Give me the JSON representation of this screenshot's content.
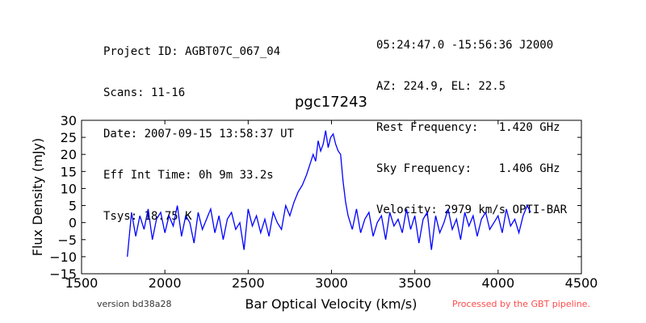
{
  "header": {
    "left": [
      "Project ID: AGBT07C_067_04",
      "Scans: 11-16",
      "Date: 2007-09-15 13:58:37 UT",
      "Eff Int Time: 0h 9m 33.2s",
      "Tsys: 18.75 K"
    ],
    "right": [
      "05:24:47.0 -15:56:36 J2000",
      "AZ: 224.9, EL: 22.5",
      "Rest Frequency:   1.420 GHz",
      "Sky Frequency:    1.406 GHz",
      "Velocity: 2979 km/s OPTI-BAR"
    ]
  },
  "footer": {
    "version": "version bd38a28",
    "pipeline": "Processed by the GBT pipeline."
  },
  "colors": {
    "line": "#0000ff",
    "pipeline_text": "#ff4a4a"
  },
  "chart_data": {
    "type": "line",
    "title": "pgc17243",
    "xlabel": "Bar Optical Velocity (km/s)",
    "ylabel": "Flux Density (mJy)",
    "xlim": [
      1500,
      4500
    ],
    "ylim": [
      -15,
      30
    ],
    "xticks": [
      1500,
      2000,
      2500,
      3000,
      3500,
      4000,
      4500
    ],
    "yticks": [
      -15,
      -10,
      -5,
      0,
      5,
      10,
      15,
      20,
      25,
      30
    ],
    "grid": false,
    "series": [
      {
        "x": [
          1775,
          1800,
          1825,
          1850,
          1875,
          1900,
          1925,
          1950,
          1975,
          2000,
          2025,
          2050,
          2075,
          2100,
          2125,
          2150,
          2175,
          2200,
          2225,
          2250,
          2275,
          2300,
          2325,
          2350,
          2375,
          2400,
          2425,
          2450,
          2475,
          2500,
          2525,
          2550,
          2575,
          2600,
          2625,
          2650,
          2675,
          2700,
          2725,
          2750,
          2775,
          2800,
          2825,
          2850,
          2870,
          2890,
          2905,
          2920,
          2935,
          2950,
          2965,
          2980,
          2995,
          3010,
          3025,
          3040,
          3055,
          3070,
          3085,
          3100,
          3125,
          3150,
          3175,
          3200,
          3225,
          3250,
          3275,
          3300,
          3325,
          3350,
          3375,
          3400,
          3425,
          3450,
          3475,
          3500,
          3525,
          3550,
          3575,
          3600,
          3625,
          3650,
          3675,
          3700,
          3725,
          3750,
          3775,
          3800,
          3825,
          3850,
          3875,
          3900,
          3925,
          3950,
          3975,
          4000,
          4025,
          4050,
          4075,
          4100,
          4125,
          4150,
          4175,
          4195
        ],
        "y": [
          -10,
          3,
          -4,
          2,
          -2,
          4,
          -5,
          1,
          3,
          -3,
          2,
          -1,
          5,
          -4,
          2,
          0,
          -6,
          3,
          -2,
          1,
          4,
          -3,
          2,
          -5,
          1,
          3,
          -2,
          0,
          -8,
          4,
          -1,
          2,
          -3,
          1,
          -4,
          3,
          0,
          -2,
          5,
          2,
          6,
          9,
          11,
          14,
          17,
          20,
          18,
          24,
          21,
          23,
          27,
          22,
          25,
          26,
          23,
          21,
          20,
          12,
          6,
          2,
          -2,
          4,
          -3,
          1,
          3,
          -4,
          0,
          2,
          -5,
          3,
          -1,
          1,
          -3,
          4,
          -2,
          2,
          -6,
          1,
          3,
          -8,
          2,
          -3,
          0,
          4,
          -2,
          1,
          -5,
          3,
          -1,
          2,
          -4,
          1,
          3,
          -2,
          0,
          2,
          -3,
          4,
          -1,
          1,
          -3,
          2,
          5,
          3
        ]
      }
    ]
  }
}
